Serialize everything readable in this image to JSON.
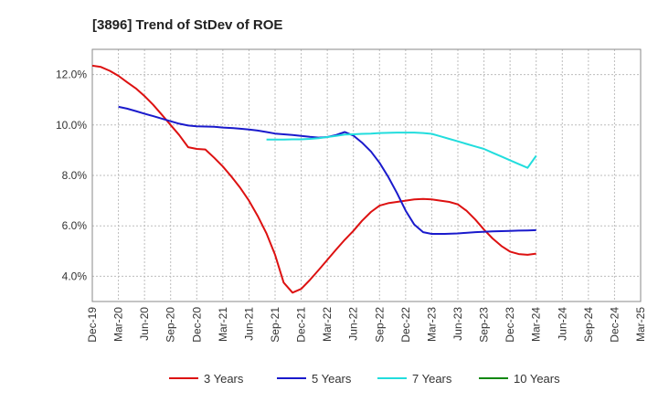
{
  "chart_data": {
    "type": "line",
    "title": "[3896]  Trend of StDev of ROE",
    "xlabel": "",
    "ylabel": "",
    "categories": [
      "Dec-19",
      "Mar-20",
      "Jun-20",
      "Sep-20",
      "Dec-20",
      "Mar-21",
      "Jun-21",
      "Sep-21",
      "Dec-21",
      "Mar-22",
      "Jun-22",
      "Sep-22",
      "Dec-22",
      "Mar-23",
      "Jun-23",
      "Sep-23",
      "Dec-23",
      "Mar-24",
      "Jun-24",
      "Sep-24",
      "Dec-24",
      "Mar-25"
    ],
    "ylim": [
      3.0,
      13.0
    ],
    "yticks": [
      4.0,
      6.0,
      8.0,
      10.0,
      12.0
    ],
    "ytick_labels": [
      "4.0%",
      "6.0%",
      "8.0%",
      "10.0%",
      "12.0%"
    ],
    "grid": true,
    "legend_position": "bottom",
    "series": [
      {
        "name": "3 Years",
        "color": "#dd1111",
        "points": [
          [
            0,
            12.35
          ],
          [
            0.33,
            12.3
          ],
          [
            0.67,
            12.15
          ],
          [
            1,
            11.95
          ],
          [
            1.33,
            11.7
          ],
          [
            1.67,
            11.45
          ],
          [
            2,
            11.15
          ],
          [
            2.33,
            10.8
          ],
          [
            2.67,
            10.4
          ],
          [
            3,
            10.0
          ],
          [
            3.33,
            9.6
          ],
          [
            3.67,
            9.12
          ],
          [
            4,
            9.05
          ],
          [
            4.33,
            9.03
          ],
          [
            4.67,
            8.7
          ],
          [
            5,
            8.35
          ],
          [
            5.33,
            7.95
          ],
          [
            5.67,
            7.5
          ],
          [
            6,
            7.0
          ],
          [
            6.33,
            6.4
          ],
          [
            6.67,
            5.7
          ],
          [
            7,
            4.85
          ],
          [
            7.33,
            3.75
          ],
          [
            7.67,
            3.35
          ],
          [
            8,
            3.5
          ],
          [
            8.33,
            3.85
          ],
          [
            8.67,
            4.25
          ],
          [
            9,
            4.65
          ],
          [
            9.33,
            5.05
          ],
          [
            9.67,
            5.45
          ],
          [
            10,
            5.8
          ],
          [
            10.33,
            6.2
          ],
          [
            10.67,
            6.55
          ],
          [
            11,
            6.8
          ],
          [
            11.33,
            6.9
          ],
          [
            11.67,
            6.95
          ],
          [
            12,
            7.0
          ],
          [
            12.33,
            7.05
          ],
          [
            12.67,
            7.07
          ],
          [
            13,
            7.05
          ],
          [
            13.33,
            7.0
          ],
          [
            13.67,
            6.95
          ],
          [
            14,
            6.85
          ],
          [
            14.33,
            6.6
          ],
          [
            14.67,
            6.25
          ],
          [
            15,
            5.85
          ],
          [
            15.33,
            5.5
          ],
          [
            15.67,
            5.2
          ],
          [
            16,
            4.98
          ],
          [
            16.33,
            4.88
          ],
          [
            16.67,
            4.85
          ],
          [
            17,
            4.9
          ]
        ]
      },
      {
        "name": "5 Years",
        "color": "#1a1acc",
        "points": [
          [
            1,
            10.72
          ],
          [
            1.33,
            10.65
          ],
          [
            1.67,
            10.55
          ],
          [
            2,
            10.45
          ],
          [
            2.33,
            10.35
          ],
          [
            2.67,
            10.25
          ],
          [
            3,
            10.15
          ],
          [
            3.33,
            10.05
          ],
          [
            3.67,
            9.98
          ],
          [
            4,
            9.95
          ],
          [
            4.67,
            9.93
          ],
          [
            5,
            9.9
          ],
          [
            5.33,
            9.88
          ],
          [
            5.67,
            9.85
          ],
          [
            6,
            9.82
          ],
          [
            6.33,
            9.78
          ],
          [
            6.67,
            9.72
          ],
          [
            7,
            9.66
          ],
          [
            7.33,
            9.63
          ],
          [
            7.67,
            9.6
          ],
          [
            8,
            9.57
          ],
          [
            8.33,
            9.53
          ],
          [
            8.67,
            9.5
          ],
          [
            9,
            9.52
          ],
          [
            9.33,
            9.6
          ],
          [
            9.67,
            9.72
          ],
          [
            10,
            9.58
          ],
          [
            10.33,
            9.3
          ],
          [
            10.67,
            8.95
          ],
          [
            11,
            8.5
          ],
          [
            11.33,
            7.95
          ],
          [
            11.67,
            7.3
          ],
          [
            12,
            6.6
          ],
          [
            12.33,
            6.05
          ],
          [
            12.67,
            5.75
          ],
          [
            13,
            5.68
          ],
          [
            13.5,
            5.68
          ],
          [
            14,
            5.7
          ],
          [
            14.67,
            5.75
          ],
          [
            15.33,
            5.78
          ],
          [
            16,
            5.8
          ],
          [
            16.33,
            5.81
          ],
          [
            16.67,
            5.82
          ],
          [
            17,
            5.83
          ]
        ]
      },
      {
        "name": "7 Years",
        "color": "#22dddd",
        "points": [
          [
            6.67,
            9.42
          ],
          [
            7,
            9.42
          ],
          [
            7.33,
            9.42
          ],
          [
            7.67,
            9.43
          ],
          [
            8,
            9.43
          ],
          [
            8.33,
            9.45
          ],
          [
            8.67,
            9.48
          ],
          [
            9,
            9.52
          ],
          [
            9.33,
            9.57
          ],
          [
            9.67,
            9.62
          ],
          [
            10,
            9.63
          ],
          [
            10.33,
            9.65
          ],
          [
            10.67,
            9.66
          ],
          [
            11,
            9.68
          ],
          [
            11.33,
            9.69
          ],
          [
            11.67,
            9.7
          ],
          [
            12,
            9.7
          ],
          [
            12.33,
            9.7
          ],
          [
            12.67,
            9.68
          ],
          [
            13,
            9.65
          ],
          [
            13.33,
            9.55
          ],
          [
            13.67,
            9.45
          ],
          [
            14,
            9.35
          ],
          [
            14.33,
            9.25
          ],
          [
            14.67,
            9.15
          ],
          [
            15,
            9.05
          ],
          [
            15.33,
            8.9
          ],
          [
            15.67,
            8.75
          ],
          [
            16,
            8.6
          ],
          [
            16.33,
            8.45
          ],
          [
            16.67,
            8.3
          ],
          [
            17,
            8.78
          ]
        ]
      },
      {
        "name": "10 Years",
        "color": "#118811",
        "points": []
      }
    ]
  }
}
